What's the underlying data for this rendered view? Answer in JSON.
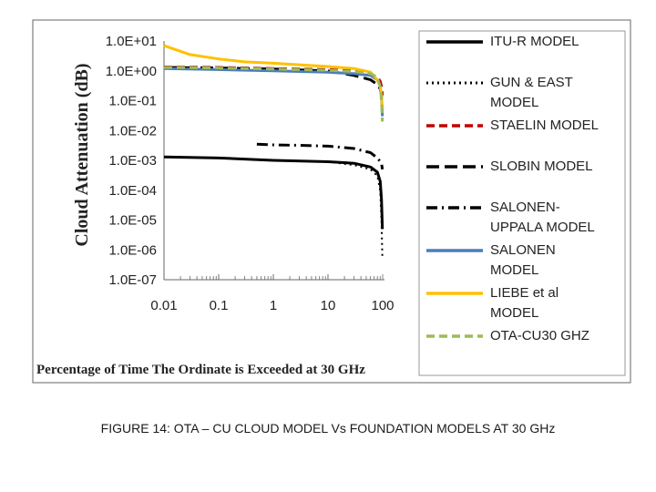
{
  "caption": "FIGURE 14: OTA – CU CLOUD MODEL  Vs  FOUNDATION MODELS AT 30 GHz",
  "chart_data": {
    "type": "line",
    "title": "",
    "xlabel": "Percentage of Time The Ordinate is Exceeded at 30 GHz",
    "ylabel": "Cloud Attenuation  (dB)",
    "xscale": "log",
    "yscale": "log",
    "xlim": [
      0.01,
      100
    ],
    "ylim": [
      1e-07,
      10
    ],
    "x_ticks": [
      "0.01",
      "0.1",
      "1",
      "10",
      "100"
    ],
    "y_ticks": [
      "1.0E+01",
      "1.0E+00",
      "1.0E-01",
      "1.0E-02",
      "1.0E-03",
      "1.0E-04",
      "1.0E-05",
      "1.0E-06",
      "1.0E-07"
    ],
    "legend_position": "right",
    "series": [
      {
        "name": "ITU-R MODEL",
        "legend_lines": [
          "ITU-R MODEL"
        ],
        "color": "#000000",
        "style": "solid",
        "x": [
          0.01,
          0.1,
          1,
          10,
          30,
          60,
          80,
          90,
          95,
          99
        ],
        "y": [
          0.0013,
          0.0012,
          0.001,
          0.0009,
          0.0008,
          0.0006,
          0.0004,
          0.0002,
          5e-05,
          5e-06
        ]
      },
      {
        "name": "GUN & EAST MODEL",
        "legend_lines": [
          "GUN & EAST",
          "MODEL"
        ],
        "color": "#000000",
        "style": "dotted",
        "x": [
          0.01,
          0.1,
          1,
          10,
          30,
          60,
          80,
          90,
          95,
          99
        ],
        "y": [
          0.0013,
          0.0012,
          0.001,
          0.0009,
          0.0007,
          0.0005,
          0.0003,
          0.0001,
          1e-05,
          5e-07
        ]
      },
      {
        "name": "STAELIN MODEL",
        "legend_lines": [
          "STAELIN MODEL"
        ],
        "color": "#c00000",
        "style": "dashed",
        "x": [
          0.01,
          0.1,
          1,
          10,
          30,
          60,
          80,
          90,
          95,
          99
        ],
        "y": [
          1.35,
          1.3,
          1.2,
          1.1,
          1.0,
          0.8,
          0.6,
          0.45,
          0.3,
          0.15
        ]
      },
      {
        "name": "SLOBIN MODEL",
        "legend_lines": [
          "SLOBIN MODEL"
        ],
        "color": "#000000",
        "style": "longdash",
        "x": [
          0.01,
          0.1,
          1,
          10,
          30,
          60,
          80,
          90,
          95,
          99
        ],
        "y": [
          1.3,
          1.25,
          1.15,
          1.0,
          0.7,
          0.5,
          0.35,
          0.25,
          0.15,
          0.05
        ]
      },
      {
        "name": "SALONEN-UPPALA MODEL",
        "legend_lines": [
          "SALONEN-",
          "UPPALA MODEL"
        ],
        "color": "#000000",
        "style": "dashdot",
        "x": [
          0.5,
          1,
          3,
          10,
          30,
          60,
          80,
          95,
          99
        ],
        "y": [
          0.0035,
          0.0033,
          0.0032,
          0.003,
          0.0025,
          0.0018,
          0.0012,
          0.0008,
          0.0005
        ]
      },
      {
        "name": "SALONEN MODEL",
        "legend_lines": [
          "SALONEN",
          "MODEL"
        ],
        "color": "#4a7ebb",
        "style": "solid",
        "x": [
          0.01,
          0.1,
          1,
          10,
          30,
          60,
          80,
          90,
          95,
          99
        ],
        "y": [
          1.2,
          1.1,
          1.0,
          0.9,
          0.8,
          0.7,
          0.5,
          0.3,
          0.15,
          0.03
        ]
      },
      {
        "name": "LIEBE et al MODEL",
        "legend_lines": [
          "LIEBE et al",
          "MODEL"
        ],
        "color": "#ffc000",
        "style": "solid",
        "x": [
          0.01,
          0.03,
          0.1,
          0.3,
          1,
          3,
          10,
          30,
          60,
          80,
          90,
          95,
          99
        ],
        "y": [
          7,
          3.5,
          2.5,
          2.0,
          1.8,
          1.6,
          1.4,
          1.2,
          0.9,
          0.5,
          0.3,
          0.15,
          0.05
        ]
      },
      {
        "name": "OTA-CU30 GHZ",
        "legend_lines": [
          "OTA-CU30 GHZ"
        ],
        "color": "#9bbb59",
        "style": "dashed",
        "x": [
          0.01,
          0.1,
          1,
          10,
          30,
          60,
          80,
          90,
          95,
          99
        ],
        "y": [
          1.3,
          1.25,
          1.15,
          1.05,
          0.95,
          0.8,
          0.6,
          0.3,
          0.1,
          0.02
        ]
      }
    ]
  }
}
